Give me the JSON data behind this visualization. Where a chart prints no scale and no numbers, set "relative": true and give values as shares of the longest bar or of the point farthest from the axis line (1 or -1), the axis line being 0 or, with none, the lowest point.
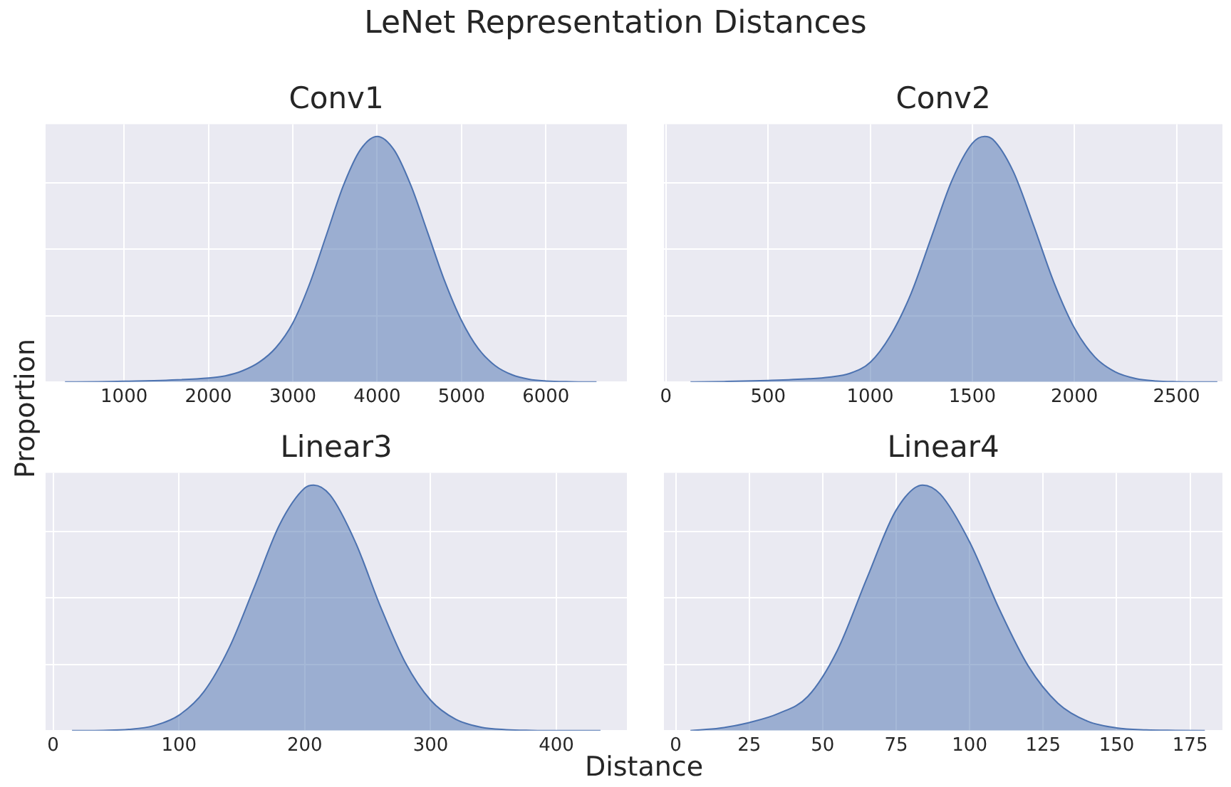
{
  "chart_data": [
    {
      "type": "area",
      "title": "Conv1",
      "ylabel": "Proportion",
      "annotations": [
        "LeNet Representation Distances"
      ],
      "relative": true,
      "color": "#4c72b0",
      "grid": true,
      "tick_labels": "x",
      "xlim": [
        70,
        6960
      ],
      "xticks": [
        1000,
        2000,
        3000,
        4000,
        5000,
        6000
      ],
      "x": [
        300,
        700,
        1000,
        1500,
        2000,
        2200,
        2400,
        2600,
        2800,
        3000,
        3200,
        3400,
        3600,
        3800,
        4000,
        4200,
        4400,
        4600,
        4800,
        5000,
        5200,
        5400,
        5600,
        5800,
        6000,
        6300,
        6600
      ],
      "values": [
        0,
        0.001,
        0.003,
        0.007,
        0.016,
        0.025,
        0.045,
        0.08,
        0.14,
        0.24,
        0.4,
        0.6,
        0.8,
        0.945,
        1,
        0.945,
        0.8,
        0.607,
        0.411,
        0.25,
        0.135,
        0.066,
        0.029,
        0.011,
        0.004,
        0.001,
        0
      ]
    },
    {
      "type": "area",
      "title": "Conv2",
      "relative": true,
      "color": "#4c72b0",
      "grid": true,
      "tick_labels": "x",
      "xlim": [
        -10,
        2725
      ],
      "xticks": [
        0,
        500,
        1000,
        1500,
        2000,
        2500
      ],
      "x": [
        120,
        300,
        500,
        700,
        800,
        900,
        1000,
        1100,
        1200,
        1300,
        1400,
        1500,
        1560,
        1600,
        1700,
        1800,
        1900,
        2000,
        2100,
        2200,
        2300,
        2400,
        2500,
        2600,
        2700
      ],
      "values": [
        0,
        0.002,
        0.006,
        0.013,
        0.02,
        0.035,
        0.08,
        0.19,
        0.36,
        0.59,
        0.82,
        0.972,
        1,
        0.988,
        0.858,
        0.638,
        0.405,
        0.22,
        0.102,
        0.041,
        0.014,
        0.004,
        0.001,
        0,
        0
      ]
    },
    {
      "type": "area",
      "title": "Linear3",
      "xlabel": "Distance",
      "relative": true,
      "color": "#4c72b0",
      "grid": true,
      "tick_labels": "x",
      "xlim": [
        -6,
        456
      ],
      "xticks": [
        0,
        100,
        200,
        300,
        400
      ],
      "x": [
        15,
        40,
        60,
        80,
        100,
        120,
        140,
        160,
        180,
        200,
        207,
        220,
        240,
        260,
        280,
        300,
        320,
        340,
        360,
        380,
        400,
        435
      ],
      "values": [
        0,
        0.001,
        0.005,
        0.02,
        0.063,
        0.16,
        0.338,
        0.586,
        0.839,
        0.988,
        1,
        0.96,
        0.77,
        0.507,
        0.276,
        0.124,
        0.046,
        0.014,
        0.004,
        0.001,
        0,
        0
      ]
    },
    {
      "type": "area",
      "title": "Linear4",
      "relative": true,
      "color": "#4c72b0",
      "grid": true,
      "tick_labels": "x",
      "xlim": [
        -4,
        186
      ],
      "xticks": [
        0,
        25,
        50,
        75,
        100,
        125,
        150,
        175
      ],
      "x": [
        5,
        15,
        25,
        35,
        45,
        55,
        65,
        75,
        84,
        90,
        100,
        110,
        120,
        130,
        140,
        150,
        160,
        170,
        180
      ],
      "values": [
        0,
        0.01,
        0.033,
        0.07,
        0.14,
        0.327,
        0.619,
        0.898,
        1,
        0.963,
        0.768,
        0.497,
        0.262,
        0.112,
        0.039,
        0.011,
        0.003,
        0.001,
        0
      ]
    }
  ]
}
